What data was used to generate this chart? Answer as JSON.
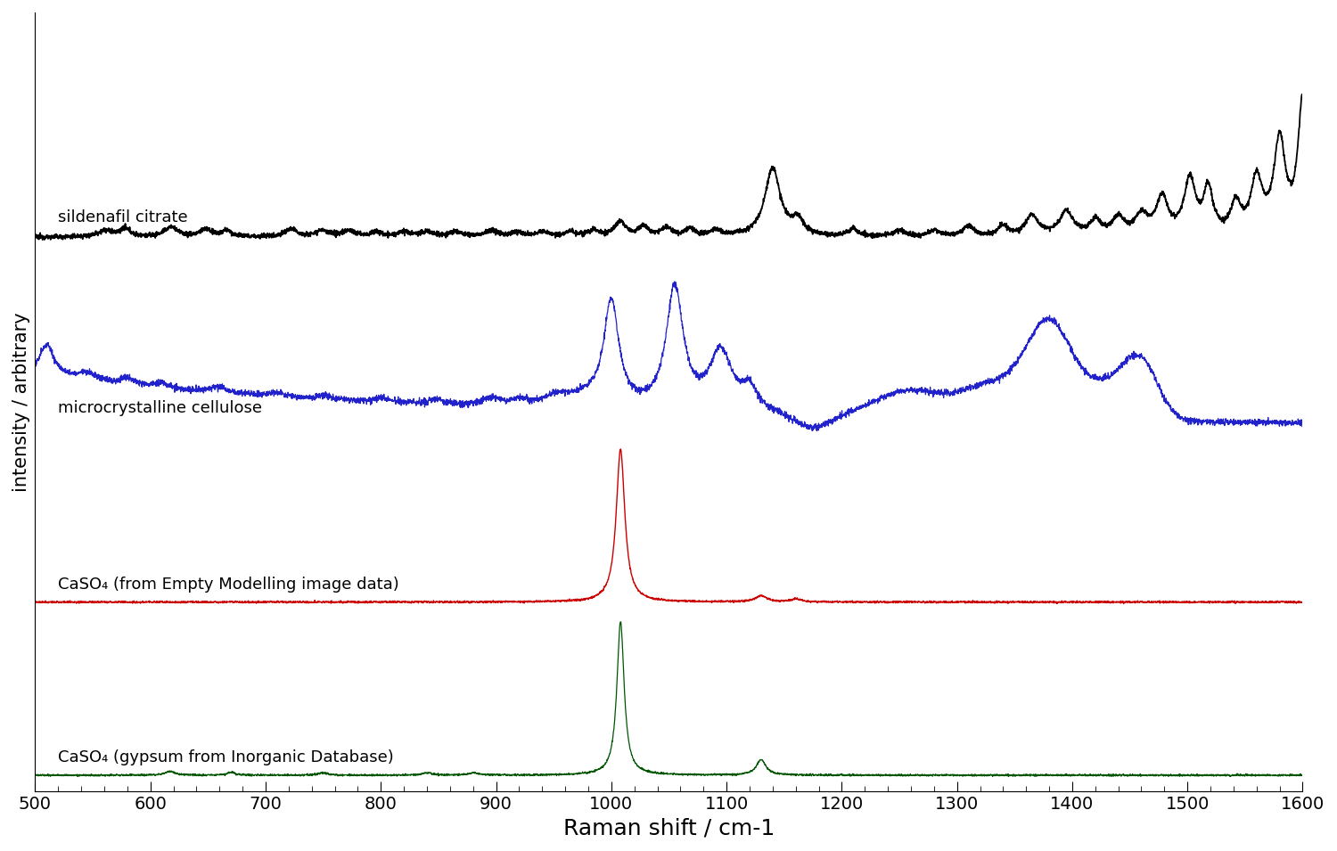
{
  "xlim": [
    500,
    1600
  ],
  "xlabel": "Raman shift / cm-1",
  "ylabel": "intensity / arbitrary",
  "xlabel_fontsize": 18,
  "ylabel_fontsize": 15,
  "tick_fontsize": 14,
  "background_color": "#ffffff",
  "spectra": [
    {
      "label": "sildenafil citrate",
      "color": "#000000",
      "lw": 1.3
    },
    {
      "label": "microcrystalline cellulose",
      "color": "#2222cc",
      "lw": 0.9
    },
    {
      "label": "CaSO₄ (from Empty Modelling image data)",
      "color": "#cc0000",
      "lw": 1.0
    },
    {
      "label": "CaSO₄ (gypsum from Inorganic Database)",
      "color": "#005500",
      "lw": 0.9
    }
  ]
}
